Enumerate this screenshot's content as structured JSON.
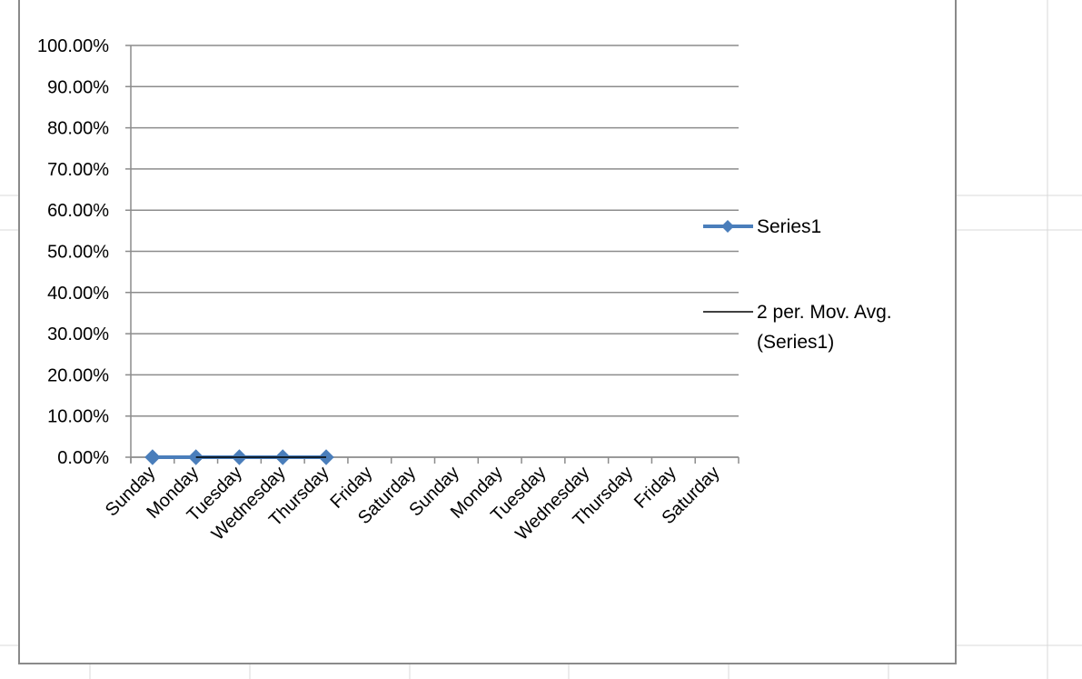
{
  "chart_data": {
    "type": "line",
    "categories": [
      "Sunday",
      "Monday",
      "Tuesday",
      "Wednesday",
      "Thursday",
      "Friday",
      "Saturday",
      "Sunday",
      "Monday",
      "Tuesday",
      "Wednesday",
      "Thursday",
      "Friday",
      "Saturday"
    ],
    "series": [
      {
        "name": "Series1",
        "values": [
          0,
          0,
          0,
          0,
          0,
          null,
          null,
          null,
          null,
          null,
          null,
          null,
          null,
          null
        ],
        "color": "#4a7ebb",
        "marker": "diamond"
      },
      {
        "name": "2 per. Mov. Avg. (Series1)",
        "values": [
          null,
          0,
          0,
          0,
          0,
          null,
          null,
          null,
          null,
          null,
          null,
          null,
          null,
          null
        ],
        "color": "#000000",
        "marker": "none",
        "trendline": "moving-average"
      }
    ],
    "y_tick_labels": [
      "0.00%",
      "10.00%",
      "20.00%",
      "30.00%",
      "40.00%",
      "50.00%",
      "60.00%",
      "70.00%",
      "80.00%",
      "90.00%",
      "100.00%"
    ],
    "ylim": [
      0,
      1
    ],
    "y_format": "percent-2dp",
    "grid": true,
    "legend_position": "right",
    "legend": [
      {
        "lines": [
          "Series1"
        ]
      },
      {
        "lines": [
          "2 per. Mov. Avg.",
          "(Series1)"
        ]
      }
    ],
    "colors": {
      "gridline": "#8c8c8c",
      "axis": "#8c8c8c",
      "sheet_grid": "#d9d9d9"
    }
  }
}
